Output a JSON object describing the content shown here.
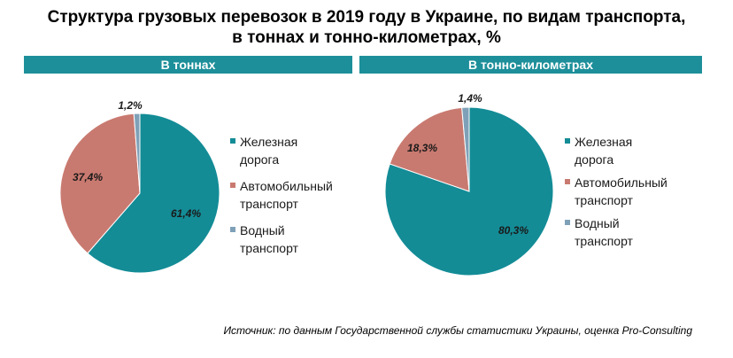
{
  "title_line1": "Структура грузовых перевозок в 2019 году в Украине, по видам транспорта,",
  "title_line2": "в тоннах и тонно-километрах, %",
  "source": "Источник: по данным Государственной службы статистики Украины, оценка Pro-Consulting",
  "colors": {
    "rail": "#138c96",
    "auto": "#c97a70",
    "water": "#7fa1b8",
    "header_bg": "#1d8f9a"
  },
  "chart_data": [
    {
      "type": "pie",
      "title": "В тоннах",
      "series": [
        {
          "name": "Железная дорога",
          "legend_lines": [
            "Железная",
            "дорога"
          ],
          "value": 61.4,
          "label": "61,4%",
          "color": "#138c96"
        },
        {
          "name": "Автомобильный транспорт",
          "legend_lines": [
            "Автомобильный",
            "транспорт"
          ],
          "value": 37.4,
          "label": "37,4%",
          "color": "#c97a70"
        },
        {
          "name": "Водный транспорт",
          "legend_lines": [
            "Водный",
            "транспорт"
          ],
          "value": 1.2,
          "label": "1,2%",
          "color": "#7fa1b8"
        }
      ]
    },
    {
      "type": "pie",
      "title": "В тонно-километрах",
      "series": [
        {
          "name": "Железная дорога",
          "legend_lines": [
            "Железная",
            "дорога"
          ],
          "value": 80.3,
          "label": "80,3%",
          "color": "#138c96"
        },
        {
          "name": "Автомобильный транспорт",
          "legend_lines": [
            "Автомобильный",
            "транспорт"
          ],
          "value": 18.3,
          "label": "18,3%",
          "color": "#c97a70"
        },
        {
          "name": "Водный транспорт",
          "legend_lines": [
            "Водный",
            "транспорт"
          ],
          "value": 1.4,
          "label": "1,4%",
          "color": "#7fa1b8"
        }
      ]
    }
  ]
}
